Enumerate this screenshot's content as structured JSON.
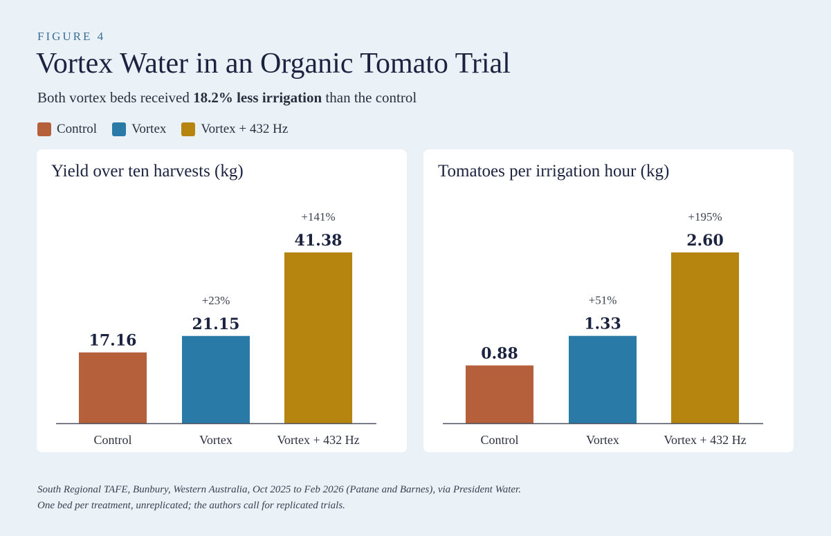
{
  "header": {
    "eyebrow": "FIGURE 4",
    "title": "Vortex Water in an Organic Tomato Trial",
    "subtitle_pre": "Both vortex beds received ",
    "subtitle_bold": "18.2% less irrigation",
    "subtitle_post": " than the control"
  },
  "legend": [
    {
      "label": "Control",
      "color": "#b5603b"
    },
    {
      "label": "Vortex",
      "color": "#2a7aa8"
    },
    {
      "label": "Vortex + 432 Hz",
      "color": "#b5850f"
    }
  ],
  "chart_data": [
    {
      "type": "bar",
      "title": "Yield over ten harvests (kg)",
      "categories": [
        "Control",
        "Vortex",
        "Vortex + 432 Hz"
      ],
      "values": [
        17.16,
        21.15,
        41.38
      ],
      "value_labels": [
        "17.16",
        "21.15",
        "41.38"
      ],
      "change_labels": [
        "",
        "+23%",
        "+141%"
      ],
      "colors": [
        "#b5603b",
        "#2a7aa8",
        "#b5850f"
      ],
      "ylim": [
        0,
        41.38
      ],
      "grid": false
    },
    {
      "type": "bar",
      "title": "Tomatoes per irrigation hour (kg)",
      "categories": [
        "Control",
        "Vortex",
        "Vortex + 432 Hz"
      ],
      "values": [
        0.88,
        1.33,
        2.6
      ],
      "value_labels": [
        "0.88",
        "1.33",
        "2.60"
      ],
      "change_labels": [
        "",
        "+51%",
        "+195%"
      ],
      "colors": [
        "#b5603b",
        "#2a7aa8",
        "#b5850f"
      ],
      "ylim": [
        0,
        2.6
      ],
      "grid": false
    }
  ],
  "footnote": {
    "line1": "South Regional TAFE, Bunbury, Western Australia, Oct 2025 to Feb 2026 (Patane and Barnes), via President Water.",
    "line2": "One bed per treatment, unreplicated; the authors call for replicated trials."
  }
}
